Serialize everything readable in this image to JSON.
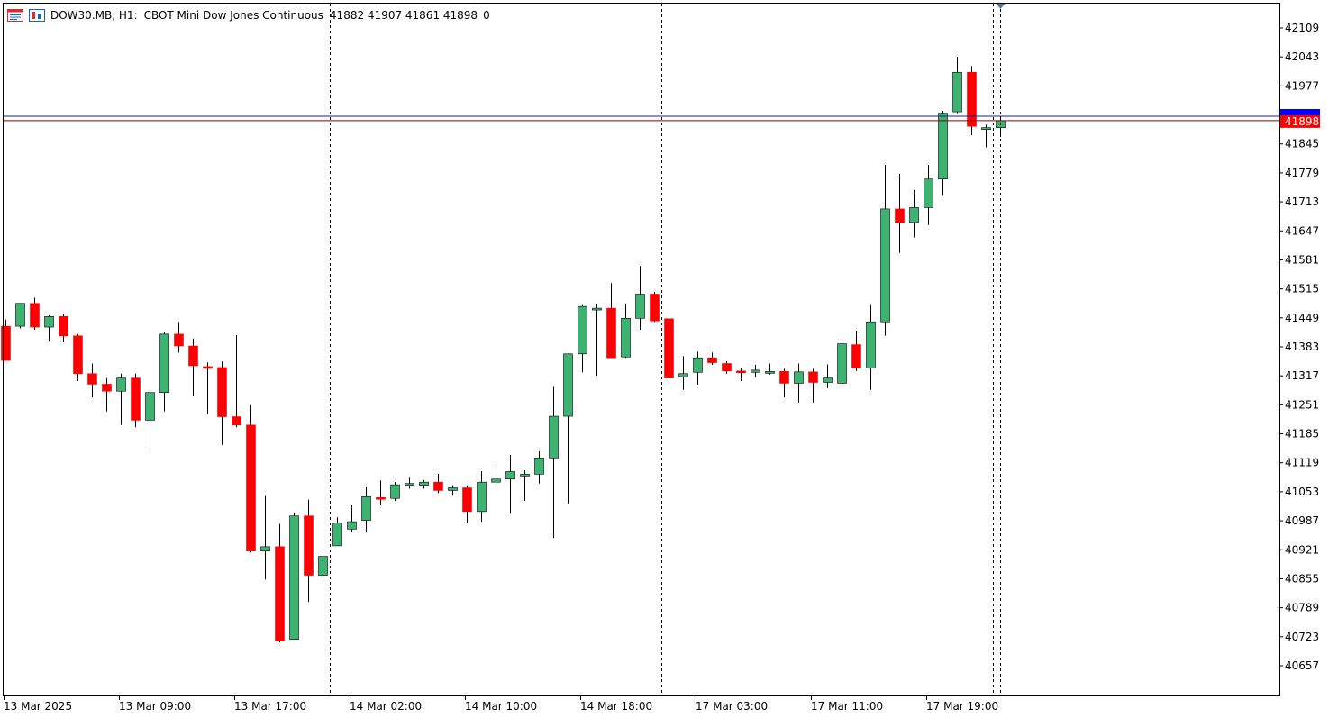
{
  "header": {
    "symbol": "DOW30.MB, H1:",
    "description": "CBOT Mini Dow Jones Continuous",
    "ohlc": "41882 41907 41861 41898",
    "volume": "0",
    "icons": [
      "chart-window-icon",
      "symbol-trade-icon"
    ]
  },
  "colors": {
    "background": "#ffffff",
    "bull": "#3cb371",
    "bear": "#ff0000",
    "wick": "#000000",
    "grid_separator": "#000000",
    "bid_line": "#8b0000",
    "ask_line": "#1a237e",
    "bid_label_bg": "#ff0000",
    "ask_label_bg": "#0000ff",
    "axis_text": "#000000"
  },
  "chart_data": {
    "type": "candlestick",
    "timeframe": "H1",
    "price_labels": [
      "42109",
      "42043",
      "41977",
      "41845",
      "41779",
      "41713",
      "41647",
      "41581",
      "41515",
      "41449",
      "41383",
      "41317",
      "41251",
      "41185",
      "41119",
      "41053",
      "40987",
      "40921",
      "40855",
      "40789",
      "40723",
      "40657"
    ],
    "current_price_label": "41898",
    "current_bid": 41898,
    "current_ask": 41908,
    "time_labels": [
      "13 Mar 2025",
      "13 Mar 09:00",
      "13 Mar 17:00",
      "14 Mar 02:00",
      "14 Mar 10:00",
      "14 Mar 18:00",
      "17 Mar 03:00",
      "17 Mar 11:00",
      "17 Mar 19:00"
    ],
    "day_separators_after_candle": [
      22,
      45,
      68
    ],
    "ylim": [
      40577,
      42139
    ],
    "candles": [
      {
        "o": 41430,
        "h": 41445,
        "l": 41352,
        "c": 41352
      },
      {
        "o": 41430,
        "h": 41482,
        "l": 41425,
        "c": 41482
      },
      {
        "o": 41482,
        "h": 41495,
        "l": 41422,
        "c": 41428
      },
      {
        "o": 41428,
        "h": 41455,
        "l": 41395,
        "c": 41452
      },
      {
        "o": 41452,
        "h": 41457,
        "l": 41393,
        "c": 41408
      },
      {
        "o": 41408,
        "h": 41412,
        "l": 41305,
        "c": 41322
      },
      {
        "o": 41322,
        "h": 41345,
        "l": 41268,
        "c": 41298
      },
      {
        "o": 41298,
        "h": 41312,
        "l": 41236,
        "c": 41282
      },
      {
        "o": 41282,
        "h": 41322,
        "l": 41205,
        "c": 41312
      },
      {
        "o": 41312,
        "h": 41322,
        "l": 41200,
        "c": 41216
      },
      {
        "o": 41216,
        "h": 41282,
        "l": 41150,
        "c": 41279
      },
      {
        "o": 41279,
        "h": 41416,
        "l": 41236,
        "c": 41412
      },
      {
        "o": 41412,
        "h": 41440,
        "l": 41370,
        "c": 41385
      },
      {
        "o": 41385,
        "h": 41402,
        "l": 41270,
        "c": 41340
      },
      {
        "o": 41338,
        "h": 41348,
        "l": 41230,
        "c": 41336
      },
      {
        "o": 41336,
        "h": 41350,
        "l": 41160,
        "c": 41224
      },
      {
        "o": 41224,
        "h": 41410,
        "l": 41200,
        "c": 41205
      },
      {
        "o": 41205,
        "h": 41250,
        "l": 40915,
        "c": 40918
      },
      {
        "o": 40918,
        "h": 41043,
        "l": 40853,
        "c": 40928
      },
      {
        "o": 40928,
        "h": 40980,
        "l": 40710,
        "c": 40713
      },
      {
        "o": 40717,
        "h": 41006,
        "l": 40717,
        "c": 40998
      },
      {
        "o": 40998,
        "h": 41035,
        "l": 40802,
        "c": 40863
      },
      {
        "o": 40863,
        "h": 40923,
        "l": 40855,
        "c": 40906
      },
      {
        "o": 40930,
        "h": 40995,
        "l": 40930,
        "c": 40982
      },
      {
        "o": 40968,
        "h": 41022,
        "l": 40962,
        "c": 40985
      },
      {
        "o": 40988,
        "h": 41063,
        "l": 40960,
        "c": 41042
      },
      {
        "o": 41040,
        "h": 41079,
        "l": 41022,
        "c": 41038
      },
      {
        "o": 41038,
        "h": 41075,
        "l": 41032,
        "c": 41069
      },
      {
        "o": 41068,
        "h": 41085,
        "l": 41060,
        "c": 41072
      },
      {
        "o": 41068,
        "h": 41080,
        "l": 41060,
        "c": 41075
      },
      {
        "o": 41075,
        "h": 41094,
        "l": 41050,
        "c": 41056
      },
      {
        "o": 41056,
        "h": 41068,
        "l": 41044,
        "c": 41062
      },
      {
        "o": 41062,
        "h": 41068,
        "l": 40983,
        "c": 41008
      },
      {
        "o": 41008,
        "h": 41100,
        "l": 40985,
        "c": 41075
      },
      {
        "o": 41075,
        "h": 41110,
        "l": 41062,
        "c": 41082
      },
      {
        "o": 41082,
        "h": 41137,
        "l": 41005,
        "c": 41099
      },
      {
        "o": 41092,
        "h": 41102,
        "l": 41032,
        "c": 41093
      },
      {
        "o": 41093,
        "h": 41145,
        "l": 41072,
        "c": 41130
      },
      {
        "o": 41130,
        "h": 41292,
        "l": 40948,
        "c": 41225
      },
      {
        "o": 41225,
        "h": 41368,
        "l": 41025,
        "c": 41367
      },
      {
        "o": 41367,
        "h": 41478,
        "l": 41325,
        "c": 41475
      },
      {
        "o": 41470,
        "h": 41480,
        "l": 41317,
        "c": 41471
      },
      {
        "o": 41471,
        "h": 41528,
        "l": 41358,
        "c": 41358
      },
      {
        "o": 41360,
        "h": 41482,
        "l": 41358,
        "c": 41448
      },
      {
        "o": 41448,
        "h": 41567,
        "l": 41422,
        "c": 41503
      },
      {
        "o": 41503,
        "h": 41508,
        "l": 41440,
        "c": 41442
      },
      {
        "o": 41447,
        "h": 41454,
        "l": 41310,
        "c": 41312
      },
      {
        "o": 41315,
        "h": 41362,
        "l": 41285,
        "c": 41322
      },
      {
        "o": 41325,
        "h": 41372,
        "l": 41297,
        "c": 41358
      },
      {
        "o": 41358,
        "h": 41370,
        "l": 41342,
        "c": 41347
      },
      {
        "o": 41345,
        "h": 41350,
        "l": 41322,
        "c": 41328
      },
      {
        "o": 41328,
        "h": 41335,
        "l": 41305,
        "c": 41325
      },
      {
        "o": 41325,
        "h": 41342,
        "l": 41314,
        "c": 41330
      },
      {
        "o": 41327,
        "h": 41345,
        "l": 41320,
        "c": 41327
      },
      {
        "o": 41327,
        "h": 41333,
        "l": 41268,
        "c": 41300
      },
      {
        "o": 41300,
        "h": 41345,
        "l": 41256,
        "c": 41326
      },
      {
        "o": 41326,
        "h": 41333,
        "l": 41256,
        "c": 41302
      },
      {
        "o": 41302,
        "h": 41343,
        "l": 41289,
        "c": 41312
      },
      {
        "o": 41300,
        "h": 41395,
        "l": 41295,
        "c": 41390
      },
      {
        "o": 41388,
        "h": 41420,
        "l": 41328,
        "c": 41335
      },
      {
        "o": 41335,
        "h": 41478,
        "l": 41285,
        "c": 41440
      },
      {
        "o": 41440,
        "h": 41797,
        "l": 41408,
        "c": 41697
      },
      {
        "o": 41697,
        "h": 41777,
        "l": 41597,
        "c": 41666
      },
      {
        "o": 41666,
        "h": 41740,
        "l": 41632,
        "c": 41700
      },
      {
        "o": 41700,
        "h": 41797,
        "l": 41660,
        "c": 41765
      },
      {
        "o": 41765,
        "h": 41920,
        "l": 41727,
        "c": 41915
      },
      {
        "o": 41918,
        "h": 42043,
        "l": 41915,
        "c": 42008
      },
      {
        "o": 42008,
        "h": 42022,
        "l": 41865,
        "c": 41885
      },
      {
        "o": 41882,
        "h": 41889,
        "l": 41837,
        "c": 41882
      },
      {
        "o": 41882,
        "h": 41907,
        "l": 41861,
        "c": 41898
      }
    ]
  }
}
